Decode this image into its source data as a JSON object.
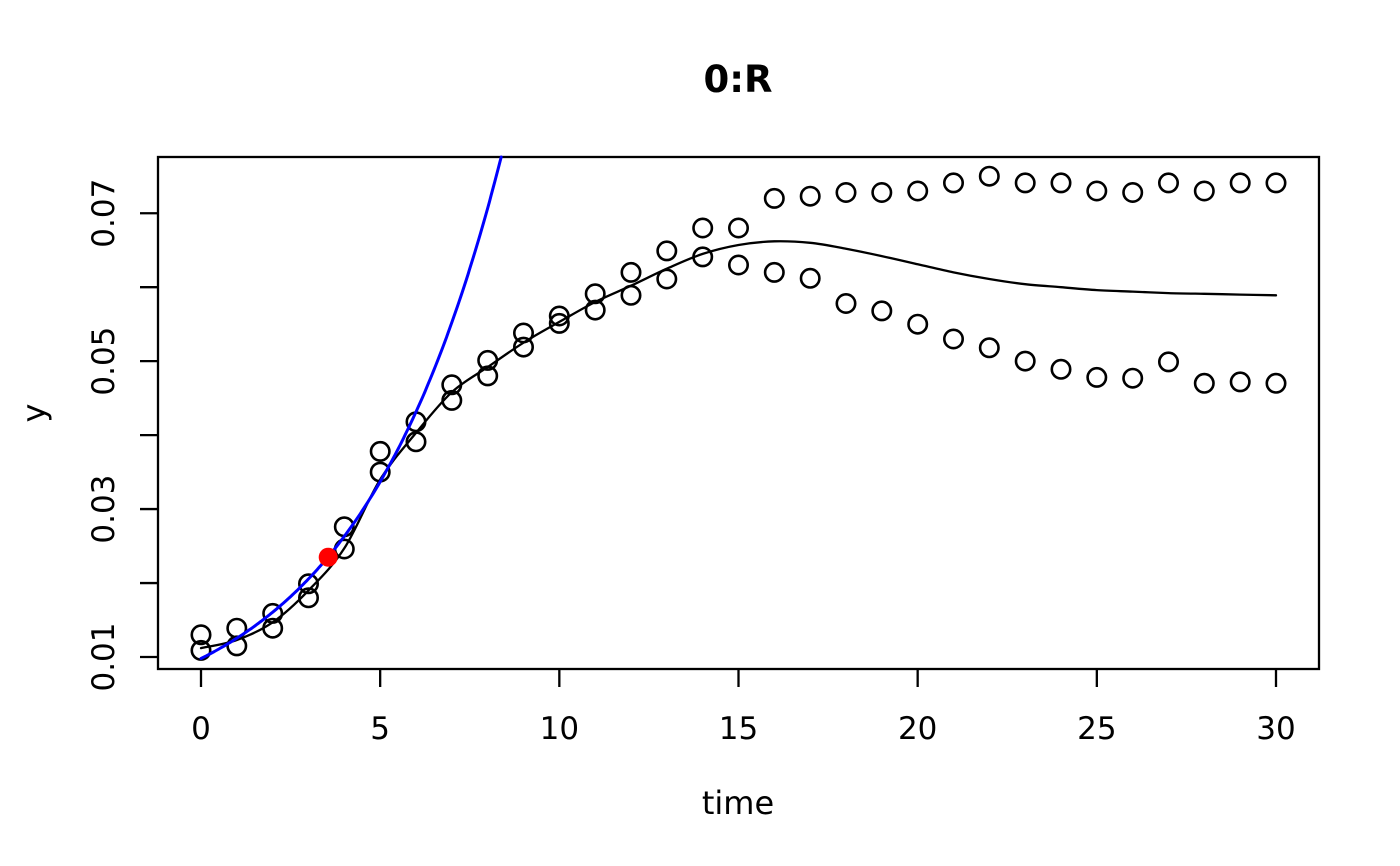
{
  "chart_data": {
    "type": "scatter",
    "title": "0:R",
    "xlabel": "time",
    "ylabel": "y",
    "xlim": [
      -1.2,
      31.2
    ],
    "ylim": [
      0.00838,
      0.0776
    ],
    "grid": false,
    "frame": true,
    "legend": "none",
    "xticks": [
      0,
      5,
      10,
      15,
      20,
      25,
      30
    ],
    "xtick_labels": [
      "0",
      "5",
      "10",
      "15",
      "20",
      "25",
      "30"
    ],
    "yticks": [
      0.01,
      0.02,
      0.03,
      0.04,
      0.05,
      0.06,
      0.07
    ],
    "ytick_labels": [
      "0.01",
      "",
      "0.03",
      "",
      "0.05",
      "",
      "0.07"
    ],
    "x": [
      0,
      1,
      2,
      3,
      4,
      5,
      6,
      7,
      8,
      9,
      10,
      11,
      12,
      13,
      14,
      15,
      16,
      17,
      18,
      19,
      20,
      21,
      22,
      23,
      24,
      25,
      26,
      27,
      28,
      29,
      30
    ],
    "series": [
      {
        "name": "observations-upper",
        "kind": "scatter",
        "marker": "open-circle",
        "color": "#000000",
        "values": [
          0.013,
          0.0139,
          0.0159,
          0.0199,
          0.0276,
          0.0378,
          0.0418,
          0.0468,
          0.0501,
          0.0538,
          0.0561,
          0.0591,
          0.062,
          0.0649,
          0.068,
          0.068,
          0.072,
          0.0723,
          0.0728,
          0.0728,
          0.073,
          0.0741,
          0.075,
          0.0741,
          0.0741,
          0.073,
          0.0728,
          0.0741,
          0.073,
          0.0741,
          0.0741
        ]
      },
      {
        "name": "observations-lower",
        "kind": "scatter",
        "marker": "open-circle",
        "color": "#000000",
        "values": [
          0.0109,
          0.0115,
          0.0139,
          0.018,
          0.0246,
          0.035,
          0.0391,
          0.0447,
          0.048,
          0.0519,
          0.0551,
          0.0569,
          0.0589,
          0.0611,
          0.0641,
          0.063,
          0.062,
          0.0612,
          0.0578,
          0.0568,
          0.055,
          0.053,
          0.0518,
          0.05,
          0.0489,
          0.0478,
          0.0477,
          0.0499,
          0.047,
          0.0472,
          0.047
        ]
      },
      {
        "name": "model-fit-curve",
        "kind": "smooth-line",
        "color": "#000000",
        "values": [
          0.0112,
          0.0123,
          0.0147,
          0.019,
          0.0247,
          0.034,
          0.0403,
          0.0458,
          0.0492,
          0.0525,
          0.0553,
          0.058,
          0.0602,
          0.0625,
          0.0645,
          0.0657,
          0.0662,
          0.066,
          0.0652,
          0.0642,
          0.0631,
          0.062,
          0.0611,
          0.0604,
          0.06,
          0.0596,
          0.0594,
          0.0592,
          0.0591,
          0.059,
          0.0589
        ]
      },
      {
        "name": "exponential-growth-curve",
        "kind": "exp-line",
        "color": "#0000FF",
        "y0": 0.0098,
        "rate": 0.247,
        "t_range": [
          0,
          9
        ]
      },
      {
        "name": "highlight-point",
        "kind": "point",
        "color": "#FF0000",
        "t": 3.55,
        "y": 0.0235
      }
    ]
  }
}
